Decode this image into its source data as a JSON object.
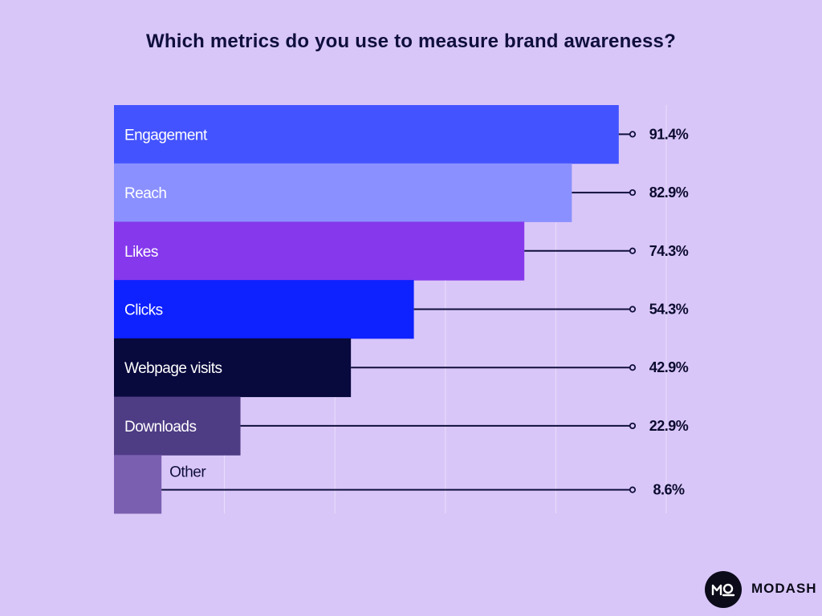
{
  "chart_data": {
    "type": "bar",
    "orientation": "horizontal",
    "title": "Which metrics do you use to measure brand awareness?",
    "categories": [
      "Engagement",
      "Reach",
      "Likes",
      "Clicks",
      "Webpage visits",
      "Downloads",
      "Other"
    ],
    "values": [
      91.4,
      82.9,
      74.3,
      54.3,
      42.9,
      22.9,
      8.6
    ],
    "value_labels": [
      "91.4%",
      "82.9%",
      "74.3%",
      "54.3%",
      "42.9%",
      "22.9%",
      "8.6%"
    ],
    "unit": "%",
    "xlim": [
      0,
      100
    ],
    "xlabel": "",
    "ylabel": "",
    "gridlines": true,
    "bar_colors": [
      "#4353ff",
      "#8a90ff",
      "#8538ec",
      "#0e21ff",
      "#08093d",
      "#4e3c85",
      "#7a5fb0"
    ]
  },
  "brand": {
    "name": "MODASH",
    "logo_icon": "modash-logo-icon"
  },
  "colors": {
    "background": "#d9c6f8",
    "leader_line": "#0f0f3d",
    "grid": "#e8defa"
  }
}
